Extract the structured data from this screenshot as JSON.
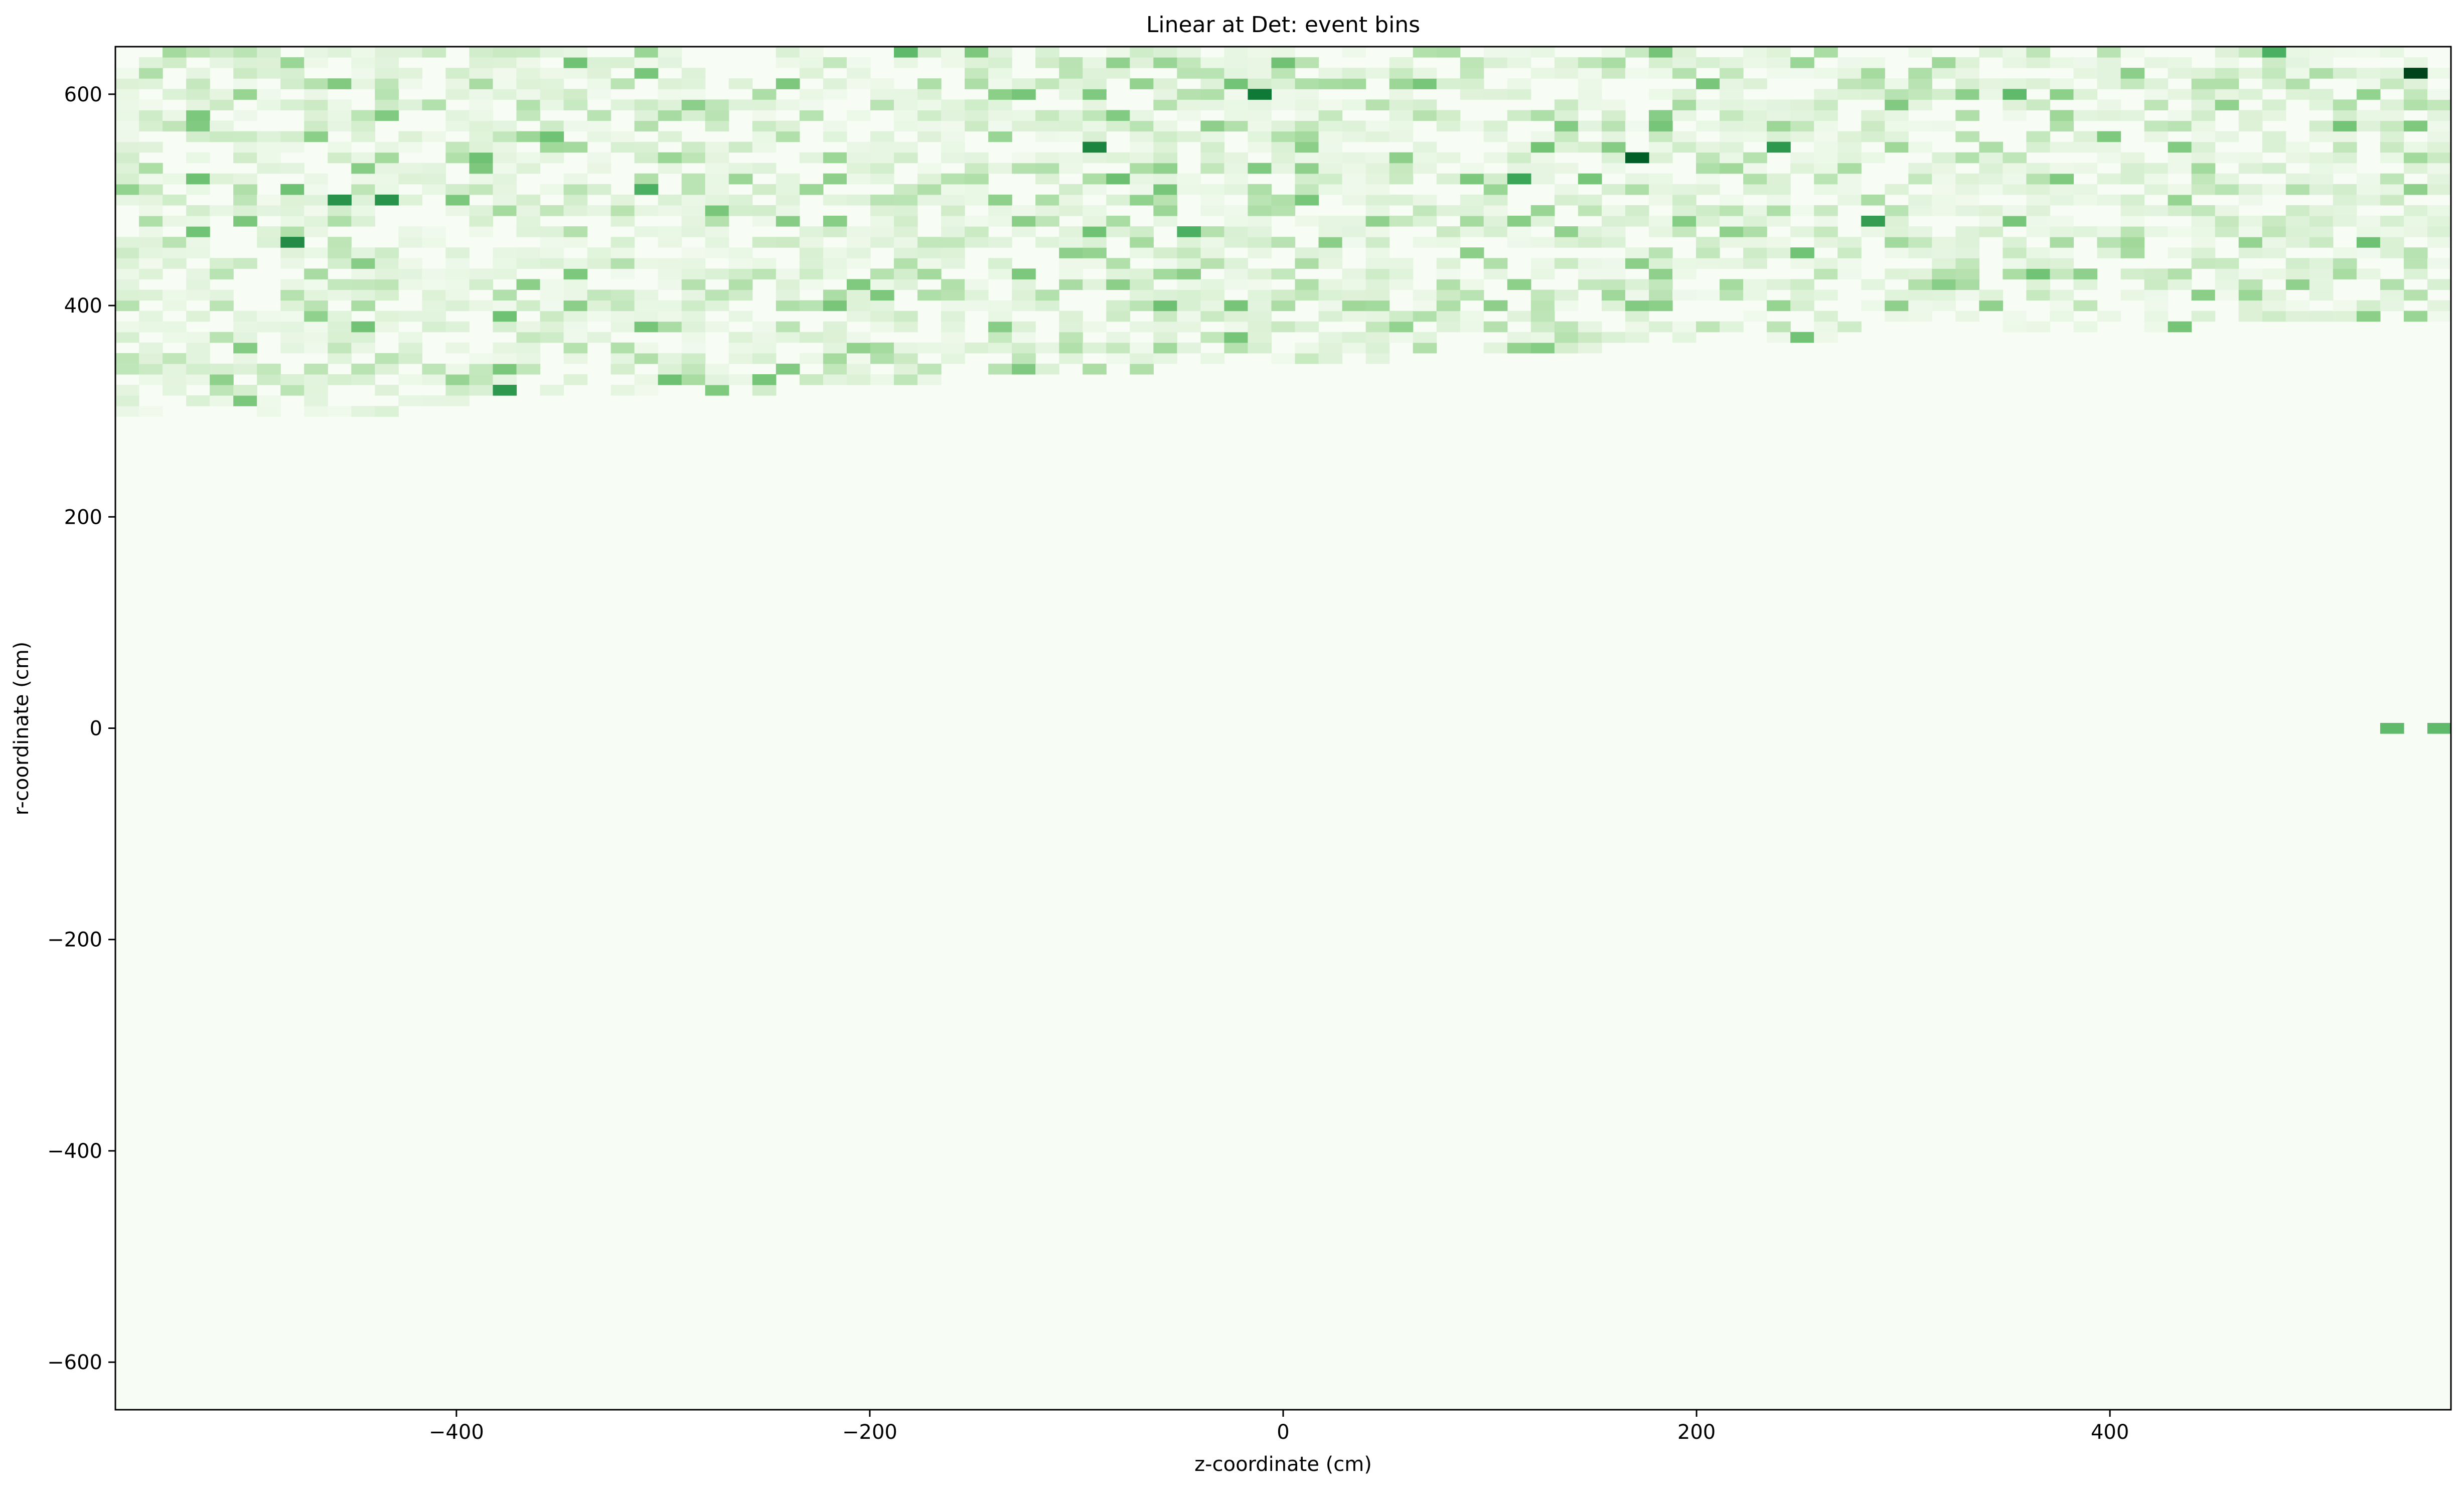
{
  "chart_data": {
    "type": "heatmap",
    "title": "Linear at Det: event bins",
    "xlabel": "z-coordinate (cm)",
    "ylabel": "r-coordinate (cm)",
    "xlim": [
      -565,
      565
    ],
    "ylim": [
      -645,
      645
    ],
    "xticks": [
      -400,
      -200,
      0,
      200,
      400
    ],
    "yticks": [
      -600,
      -400,
      -200,
      0,
      200,
      400,
      600
    ],
    "xtick_labels": [
      "−400",
      "−200",
      "0",
      "200",
      "400"
    ],
    "ytick_labels": [
      "−600",
      "−400",
      "−200",
      "0",
      "200",
      "400",
      "600"
    ],
    "colormap": "Greens",
    "colors": {
      "background_bin": "#f7fcf5",
      "low": "#f7fcf5",
      "high": "#00441b"
    },
    "bins": {
      "x_count": 99,
      "y_count": 129,
      "x_range": [
        -565,
        565
      ],
      "y_range": [
        -645,
        645
      ]
    },
    "occupied_region": {
      "description_free": true,
      "lower_boundary_r": [
        [
          -565,
          295
        ],
        [
          -400,
          295
        ],
        [
          -380,
          310
        ],
        [
          -250,
          320
        ],
        [
          -100,
          335
        ],
        [
          0,
          345
        ],
        [
          100,
          355
        ],
        [
          200,
          365
        ],
        [
          300,
          372
        ],
        [
          400,
          378
        ],
        [
          565,
          385
        ]
      ],
      "upper_r": 645,
      "density": "sparse counts, mostly light with occasional dark bins"
    },
    "highlighted_bins": [
      {
        "z": 548,
        "r": 615,
        "value": 1.0
      },
      {
        "z": 172,
        "r": 535,
        "value": 0.92
      },
      {
        "z": -12,
        "r": 600,
        "value": 0.82
      },
      {
        "z": -95,
        "r": 548,
        "value": 0.78
      },
      {
        "z": -475,
        "r": 458,
        "value": 0.75
      },
      {
        "z": -460,
        "r": 498,
        "value": 0.72
      },
      {
        "z": -435,
        "r": 498,
        "value": 0.72
      },
      {
        "z": -375,
        "r": 315,
        "value": 0.7
      },
      {
        "z": 240,
        "r": 548,
        "value": 0.7
      },
      {
        "z": 285,
        "r": 482,
        "value": 0.68
      },
      {
        "z": 115,
        "r": 522,
        "value": 0.65
      },
      {
        "z": -310,
        "r": 510,
        "value": 0.6
      },
      {
        "z": -50,
        "r": 470,
        "value": 0.6
      },
      {
        "z": 475,
        "r": 640,
        "value": 0.6
      },
      {
        "z": -180,
        "r": 640,
        "value": 0.55
      },
      {
        "z": 350,
        "r": 600,
        "value": 0.55
      },
      {
        "z": 540,
        "r": 0,
        "value": 0.55
      },
      {
        "z": 555,
        "r": 0,
        "value": 0.55
      }
    ]
  }
}
